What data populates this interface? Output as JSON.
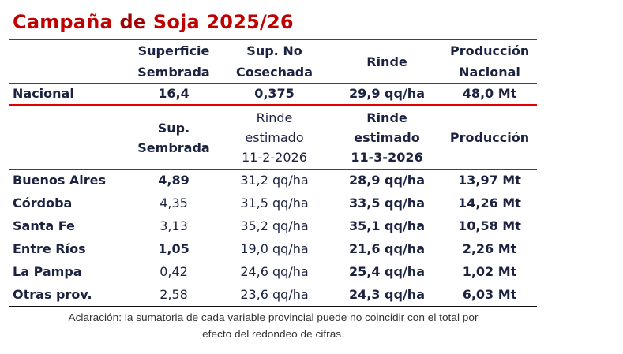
{
  "title": {
    "part1": "Campaña ",
    "part2": "de ",
    "part3": "Soja 2025/26"
  },
  "header1": [
    "",
    "Superficie Sembrada",
    "Sup. No Cosechada",
    "Rinde",
    "Producción Nacional"
  ],
  "national": {
    "label": "Nacional",
    "superficie": "16,4",
    "no_cosechada": "0,375",
    "rinde": "29,9 qq/ha",
    "produccion": "48,0 Mt"
  },
  "header2": {
    "sup_l1": "Sup.",
    "sup_l2": "Sembrada",
    "r1_l1": "Rinde",
    "r1_l2": "estimado",
    "r1_l3": "11-2-2026",
    "r2_l1": "Rinde",
    "r2_l2": "estimado",
    "r2_l3": "11-3-2026",
    "prod": "Producción"
  },
  "rows": [
    {
      "prov": "Buenos Aires",
      "sup": "4,89",
      "rinde_feb": "31,2 qq/ha",
      "rinde_mar": "28,9 qq/ha",
      "prod": "13,97 Mt"
    },
    {
      "prov": "Córdoba",
      "sup": "4,35",
      "rinde_feb": "31,5 qq/ha",
      "rinde_mar": "33,5 qq/ha",
      "prod": "14,26 Mt"
    },
    {
      "prov": "Santa Fe",
      "sup": "3,13",
      "rinde_feb": "35,2 qq/ha",
      "rinde_mar": "35,1 qq/ha",
      "prod": "10,58 Mt"
    },
    {
      "prov": "Entre Ríos",
      "sup": "1,05",
      "rinde_feb": "19,0 qq/ha",
      "rinde_mar": "21,6 qq/ha",
      "prod": "2,26 Mt"
    },
    {
      "prov": "La Pampa",
      "sup": "0,42",
      "rinde_feb": "24,6 qq/ha",
      "rinde_mar": "25,4 qq/ha",
      "prod": "1,02 Mt"
    },
    {
      "prov": "Otras prov.",
      "sup": "2,58",
      "rinde_feb": "23,6 qq/ha",
      "rinde_mar": "24,3 qq/ha",
      "prod": "6,03 Mt"
    }
  ],
  "note": {
    "line1": "Aclaración: la sumatoria de cada variable provincial puede no coincidir con el total por",
    "line2": "efecto del redondeo de cifras."
  },
  "colors": {
    "title": "#c00000",
    "rule": "#e00000",
    "text": "#1b2340"
  }
}
